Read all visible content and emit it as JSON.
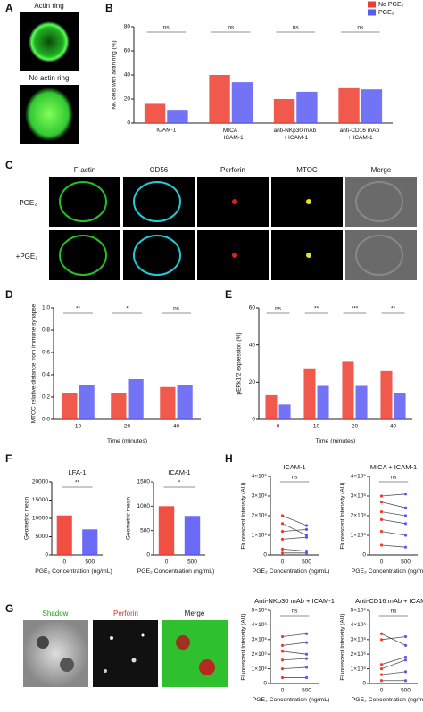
{
  "panels": {
    "letters": [
      "A",
      "B",
      "C",
      "D",
      "E",
      "F",
      "G",
      "H"
    ]
  },
  "panel_a": {
    "labels": [
      "Actin ring",
      "No actin ring"
    ]
  },
  "panel_c": {
    "columns": [
      "F-actin",
      "CD56",
      "Perforin",
      "MTOC",
      "Merge"
    ],
    "rows": [
      "-PGE₂",
      "+PGE₂"
    ]
  },
  "panel_g": {
    "columns": [
      "Shadow",
      "Perforin",
      "Merge"
    ]
  },
  "chart_data": [
    {
      "type": "bar",
      "ylabel": "NK cells with actin ring (%)",
      "categories": [
        "ICAM-1",
        "MICA + ICAM-1",
        "anti-NKp30 mAb + ICAM-1",
        "anti-CD16 mAb + ICAM-1"
      ],
      "series": [
        {
          "name": "No PGE₂",
          "color": "#f03c2e",
          "values": [
            16,
            40,
            20,
            29
          ]
        },
        {
          "name": "PGE₂",
          "color": "#5a5af5",
          "values": [
            11,
            34,
            26,
            28
          ]
        }
      ],
      "ylim": [
        0,
        80
      ],
      "yticks": [
        0,
        20,
        40,
        60,
        80
      ],
      "annotations": [
        "ns",
        "ns",
        "ns",
        "ns"
      ],
      "legend": "top-right"
    },
    {
      "type": "bar",
      "ylabel": "MTOC relative distance from immune synapse",
      "xlabel": "Time (minutes)",
      "categories": [
        "10",
        "20",
        "40"
      ],
      "series": [
        {
          "name": "No PGE₂",
          "color": "#f03c2e",
          "values": [
            0.24,
            0.24,
            0.29
          ]
        },
        {
          "name": "PGE₂",
          "color": "#5a5af5",
          "values": [
            0.31,
            0.36,
            0.31
          ]
        }
      ],
      "ylim": [
        0,
        1
      ],
      "yticks": [
        {
          "value": 0,
          "label": "0.0"
        },
        {
          "value": 0.2,
          "label": "0.2"
        },
        {
          "value": 0.4,
          "label": "0.4"
        },
        {
          "value": 0.6,
          "label": "0.6"
        },
        {
          "value": 0.8,
          "label": "0.8"
        },
        {
          "value": 1,
          "label": "1.0"
        }
      ],
      "annotations": [
        "**",
        "*",
        "ns"
      ]
    },
    {
      "type": "bar",
      "ylabel": "pERk1/2 expression (%)",
      "xlabel": "Time (minutes)",
      "categories": [
        "0",
        "10",
        "20",
        "40"
      ],
      "series": [
        {
          "name": "No PGE₂",
          "color": "#f03c2e",
          "values": [
            13,
            27,
            31,
            26
          ]
        },
        {
          "name": "PGE₂",
          "color": "#5a5af5",
          "values": [
            8,
            18,
            18,
            14
          ]
        }
      ],
      "ylim": [
        0,
        60
      ],
      "yticks": [
        0,
        20,
        40,
        60
      ],
      "annotations": [
        "ns",
        "**",
        "***",
        "**"
      ]
    },
    {
      "type": "bar",
      "title": "LFA-1",
      "ylabel": "Geometric mean",
      "xlabel": "PGE₂ Concentration (ng/mL)",
      "categories": [
        "0",
        "500"
      ],
      "values": [
        10800,
        7000
      ],
      "colors": [
        "#f03c2e",
        "#5a5af5"
      ],
      "ylim": [
        0,
        20000
      ],
      "yticks": [
        0,
        5000,
        10000,
        15000,
        20000
      ],
      "annotations": [
        "**"
      ]
    },
    {
      "type": "bar",
      "title": "ICAM-1",
      "ylabel": "Geometric mean",
      "xlabel": "PGE₂ Concentration (ng/mL)",
      "categories": [
        "0",
        "500"
      ],
      "values": [
        1000,
        800
      ],
      "colors": [
        "#f03c2e",
        "#5a5af5"
      ],
      "ylim": [
        0,
        1500
      ],
      "yticks": [
        0,
        500,
        1000,
        1500
      ],
      "annotations": [
        "*"
      ]
    },
    {
      "type": "line",
      "title": "ICAM-1",
      "ylabel": "Fluorescent Intensity (AU)",
      "xlabel": "PGE₂ Concentration (ng/mL)",
      "categories": [
        "0",
        "500"
      ],
      "colors": [
        "#f03c2e",
        "#5a5af5"
      ],
      "series": [
        {
          "values": [
            2000000,
            1500000
          ]
        },
        {
          "values": [
            1600000,
            1000000
          ]
        },
        {
          "values": [
            1200000,
            1300000
          ]
        },
        {
          "values": [
            800000,
            900000
          ]
        },
        {
          "values": [
            300000,
            200000
          ]
        },
        {
          "values": [
            100000,
            100000
          ]
        }
      ],
      "ylim": [
        0,
        4000000
      ],
      "yticks": [
        0,
        {
          "value": 1000000,
          "label": "1×10⁶"
        },
        {
          "value": 2000000,
          "label": "2×10⁶"
        },
        {
          "value": 3000000,
          "label": "3×10⁶"
        },
        {
          "value": 4000000,
          "label": "4×10⁶"
        }
      ],
      "annotations": [
        "ns"
      ]
    },
    {
      "type": "line",
      "title": "MICA + ICAM-1",
      "ylabel": "Fluorescent Intensity (AU)",
      "xlabel": "PGE₂ Concentration (ng/mL)",
      "categories": [
        "0",
        "500"
      ],
      "colors": [
        "#f03c2e",
        "#5a5af5"
      ],
      "series": [
        {
          "values": [
            3000000,
            3100000
          ]
        },
        {
          "values": [
            2700000,
            2400000
          ]
        },
        {
          "values": [
            2200000,
            2000000
          ]
        },
        {
          "values": [
            1800000,
            1600000
          ]
        },
        {
          "values": [
            1200000,
            1000000
          ]
        },
        {
          "values": [
            500000,
            400000
          ]
        }
      ],
      "ylim": [
        0,
        4000000
      ],
      "yticks": [
        0,
        {
          "value": 1000000,
          "label": "1×10⁶"
        },
        {
          "value": 2000000,
          "label": "2×10⁶"
        },
        {
          "value": 3000000,
          "label": "3×10⁶"
        },
        {
          "value": 4000000,
          "label": "4×10⁶"
        }
      ],
      "annotations": [
        "ns"
      ]
    },
    {
      "type": "line",
      "title": "Anti-NKp30 mAb + ICAM-1",
      "ylabel": "Fluorescent Intensity (AU)",
      "xlabel": "PGE₂ Concentration (ng/mL)",
      "categories": [
        "0",
        "500"
      ],
      "colors": [
        "#f03c2e",
        "#5a5af5"
      ],
      "series": [
        {
          "values": [
            3200000,
            3400000
          ]
        },
        {
          "values": [
            2600000,
            2800000
          ]
        },
        {
          "values": [
            2200000,
            2000000
          ]
        },
        {
          "values": [
            1600000,
            1700000
          ]
        },
        {
          "values": [
            1000000,
            1100000
          ]
        },
        {
          "values": [
            400000,
            400000
          ]
        }
      ],
      "ylim": [
        0,
        5000000
      ],
      "yticks": [
        0,
        {
          "value": 1000000,
          "label": "1×10⁶"
        },
        {
          "value": 2000000,
          "label": "2×10⁶"
        },
        {
          "value": 3000000,
          "label": "3×10⁶"
        },
        {
          "value": 4000000,
          "label": "4×10⁶"
        },
        {
          "value": 5000000,
          "label": "5×10⁶"
        }
      ],
      "annotations": [
        "ns"
      ]
    },
    {
      "type": "line",
      "title": "Anti-CD16 mAb + ICAM-1",
      "ylabel": "Fluorescent Intensity (AU)",
      "xlabel": "PGE₂ Concentration (ng/mL)",
      "categories": [
        "0",
        "500"
      ],
      "colors": [
        "#f03c2e",
        "#5a5af5"
      ],
      "series": [
        {
          "values": [
            3400000,
            2600000
          ]
        },
        {
          "values": [
            3000000,
            3200000
          ]
        },
        {
          "values": [
            1300000,
            1800000
          ]
        },
        {
          "values": [
            1000000,
            1600000
          ]
        },
        {
          "values": [
            600000,
            800000
          ]
        },
        {
          "values": [
            200000,
            200000
          ]
        }
      ],
      "ylim": [
        0,
        5000000
      ],
      "yticks": [
        0,
        {
          "value": 1000000,
          "label": "1×10⁶"
        },
        {
          "value": 2000000,
          "label": "2×10⁶"
        },
        {
          "value": 3000000,
          "label": "3×10⁶"
        },
        {
          "value": 4000000,
          "label": "4×10⁶"
        },
        {
          "value": 5000000,
          "label": "5×10⁶"
        }
      ],
      "annotations": [
        "ns"
      ]
    }
  ]
}
